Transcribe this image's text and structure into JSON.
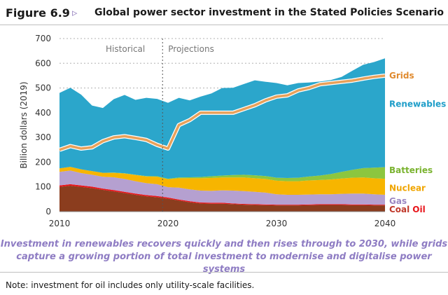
{
  "header": {
    "figure_label": "Figure 6.9",
    "figure_arrow": "▹",
    "title": "Global power sector investment in the Stated Policies Scenario"
  },
  "caption": {
    "line1": "Investment in renewables recovers quickly and then rises through to 2030, while grids",
    "line2": "capture a growing portion of total investment to modernise and digitalise power systems"
  },
  "note": "Note: investment for oil includes only utility-scale facilities.",
  "chart_data": {
    "type": "area",
    "ylabel": "Billion dollars (2019)",
    "ylim": [
      0,
      700
    ],
    "yticks": [
      0,
      100,
      200,
      300,
      400,
      500,
      600,
      700
    ],
    "xlim": [
      2010,
      2040
    ],
    "xticks": [
      2010,
      2020,
      2030,
      2040
    ],
    "period_labels": [
      "Historical",
      "Projections"
    ],
    "divider_x": 2019.5,
    "x": [
      2010,
      2011,
      2012,
      2013,
      2014,
      2015,
      2016,
      2017,
      2018,
      2019,
      2020,
      2021,
      2022,
      2023,
      2024,
      2025,
      2026,
      2027,
      2028,
      2029,
      2030,
      2031,
      2032,
      2033,
      2034,
      2035,
      2036,
      2037,
      2038,
      2039,
      2040
    ],
    "stacked_series": [
      {
        "name": "Coal",
        "color": "#8b3d1e",
        "label_color": "#c0392b",
        "values": [
          100,
          105,
          100,
          95,
          88,
          82,
          75,
          68,
          62,
          58,
          52,
          45,
          38,
          33,
          32,
          32,
          30,
          28,
          27,
          26,
          25,
          25,
          25,
          26,
          27,
          27,
          27,
          26,
          26,
          25,
          25
        ]
      },
      {
        "name": "Oil",
        "color": "#e8151b",
        "label_color": "#e8151b",
        "values": [
          6,
          6,
          6,
          6,
          5,
          5,
          5,
          5,
          5,
          5,
          5,
          4,
          4,
          4,
          4,
          4,
          3,
          3,
          3,
          3,
          3,
          3,
          3,
          3,
          3,
          3,
          3,
          3,
          3,
          3,
          3
        ]
      },
      {
        "name": "Gas",
        "color": "#b5a0d0",
        "label_color": "#9b87c2",
        "values": [
          55,
          55,
          50,
          48,
          48,
          52,
          52,
          50,
          48,
          48,
          42,
          48,
          48,
          48,
          48,
          50,
          52,
          52,
          50,
          48,
          42,
          40,
          40,
          40,
          40,
          40,
          42,
          44,
          44,
          42,
          40
        ]
      },
      {
        "name": "Nuclear",
        "color": "#f7b500",
        "label_color": "#f0a500",
        "values": [
          14,
          15,
          15,
          15,
          16,
          18,
          22,
          25,
          27,
          30,
          32,
          38,
          45,
          50,
          52,
          52,
          53,
          55,
          55,
          55,
          55,
          55,
          55,
          57,
          58,
          60,
          62,
          64,
          65,
          65,
          65
        ]
      },
      {
        "name": "Batteries",
        "color": "#8cc63f",
        "label_color": "#7ab32f",
        "values": [
          0,
          0,
          0,
          0,
          0,
          1,
          1,
          1,
          2,
          2,
          2,
          3,
          4,
          5,
          7,
          8,
          10,
          11,
          12,
          12,
          12,
          13,
          14,
          16,
          18,
          22,
          27,
          32,
          38,
          43,
          47
        ]
      },
      {
        "name": "Renewables",
        "color": "#2ba6cb",
        "label_color": "#1f9ec9",
        "values": [
          305,
          320,
          302,
          265,
          262,
          297,
          317,
          303,
          316,
          313,
          307,
          322,
          311,
          325,
          335,
          354,
          353,
          367,
          384,
          381,
          383,
          375,
          383,
          380,
          380,
          380,
          384,
          401,
          418,
          427,
          440
        ]
      }
    ],
    "line_series": {
      "name": "Grids",
      "color": "#e8a15a",
      "label_color": "#e08a2e",
      "values": [
        250,
        265,
        255,
        260,
        285,
        300,
        305,
        298,
        290,
        270,
        255,
        350,
        370,
        400,
        400,
        400,
        400,
        415,
        430,
        450,
        465,
        470,
        490,
        500,
        515,
        520,
        525,
        530,
        538,
        545,
        550
      ]
    }
  }
}
